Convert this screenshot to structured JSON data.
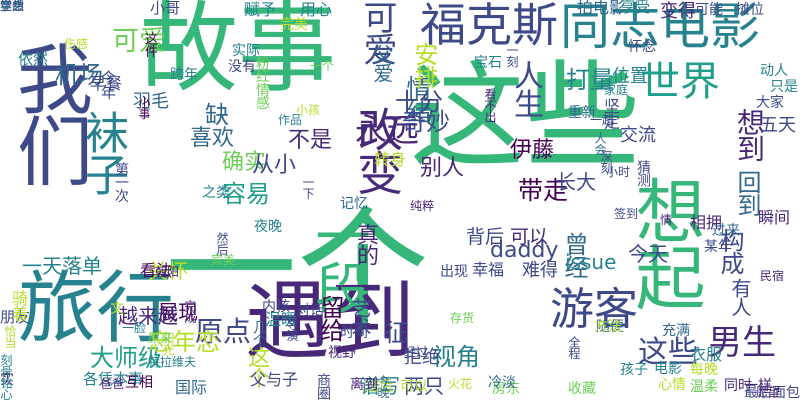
{
  "colors": {
    "background": "#ffffff",
    "palette": [
      "#440154",
      "#482878",
      "#3e4989",
      "#31688e",
      "#26828e",
      "#1f9e89",
      "#35b779",
      "#6ece58",
      "#b5de2b",
      "#fde725"
    ]
  },
  "words": [
    {
      "text": "一个",
      "color": "#35b779"
    },
    {
      "text": "这些",
      "color": "#35b779"
    },
    {
      "text": "故事",
      "color": "#35b779"
    },
    {
      "text": "想起",
      "color": "#35b779"
    },
    {
      "text": "我们",
      "color": "#3e4989"
    },
    {
      "text": "旅行",
      "color": "#26828e"
    },
    {
      "text": "遇到",
      "color": "#482878"
    },
    {
      "text": "同志电影",
      "color": "#26828e"
    },
    {
      "text": "福克斯",
      "color": "#3e4989"
    },
    {
      "text": "一段",
      "color": "#35b779"
    },
    {
      "text": "袜子",
      "color": "#26828e"
    },
    {
      "text": "改变",
      "color": "#482878"
    },
    {
      "text": "游客",
      "color": "#3e4989"
    },
    {
      "text": "世界",
      "color": "#1f9e89"
    },
    {
      "text": "永远",
      "color": "#482878"
    },
    {
      "text": "男生",
      "color": "#482878"
    },
    {
      "text": "可爱",
      "color": "#3e4989"
    },
    {
      "text": "人生",
      "color": "#3e4989"
    },
    {
      "text": "想到",
      "color": "#482878"
    },
    {
      "text": "机场",
      "color": "#31688e"
    },
    {
      "text": "情绪",
      "color": "#31688e"
    },
    {
      "text": "容易",
      "color": "#1f9e89"
    },
    {
      "text": "确实",
      "color": "#6ece58"
    },
    {
      "text": "真的",
      "color": "#482878"
    },
    {
      "text": "别人",
      "color": "#482878"
    },
    {
      "text": "带走",
      "color": "#440154"
    },
    {
      "text": "回到",
      "color": "#31688e"
    },
    {
      "text": "原点",
      "color": "#3e4989"
    },
    {
      "text": "这个",
      "color": "#b5de2b"
    },
    {
      "text": "留给",
      "color": "#440154"
    },
    {
      "text": "曾经",
      "color": "#31688e"
    },
    {
      "text": "这些",
      "color": "#3e4989"
    },
    {
      "text": "有人",
      "color": "#3e4989"
    },
    {
      "text": "构成",
      "color": "#3e4989"
    },
    {
      "text": "不是",
      "color": "#482878"
    },
    {
      "text": "缺",
      "color": "#31688e"
    },
    {
      "text": "从小",
      "color": "#3e4989"
    },
    {
      "text": "喜欢",
      "color": "#31688e"
    },
    {
      "text": "daddy",
      "color": "#3e4989"
    },
    {
      "text": "issue",
      "color": "#26828e"
    },
    {
      "text": "今天",
      "color": "#3e4989"
    },
    {
      "text": "展现",
      "color": "#440154"
    },
    {
      "text": "大师级",
      "color": "#1f9e89"
    },
    {
      "text": "一天落单",
      "color": "#26828e"
    },
    {
      "text": "越来越",
      "color": "#482878"
    },
    {
      "text": "关怀",
      "color": "#b5de2b"
    },
    {
      "text": "视角",
      "color": "#26828e"
    },
    {
      "text": "谱写",
      "color": "#26828e"
    },
    {
      "text": "两只",
      "color": "#3e4989"
    },
    {
      "text": "伊藤",
      "color": "#440154"
    },
    {
      "text": "长大",
      "color": "#3e4989"
    },
    {
      "text": "背后",
      "color": "#3e4989"
    },
    {
      "text": "可以",
      "color": "#482878"
    },
    {
      "text": "幸福",
      "color": "#3e4989"
    },
    {
      "text": "难得",
      "color": "#3e4989"
    },
    {
      "text": "交流",
      "color": "#3e4989"
    },
    {
      "text": "五天",
      "color": "#3e4989"
    },
    {
      "text": "打量",
      "color": "#26828e"
    },
    {
      "text": "位置",
      "color": "#26828e"
    },
    {
      "text": "拒绝",
      "color": "#3e4989"
    },
    {
      "text": "早餐",
      "color": "#3e4989"
    },
    {
      "text": "今年",
      "color": "#3e4989"
    },
    {
      "text": "羽毛",
      "color": "#31688e"
    },
    {
      "text": "可爱",
      "color": "#6ece58"
    },
    {
      "text": "父爱",
      "color": "#31688e"
    },
    {
      "text": "坚定",
      "color": "#3e4989"
    },
    {
      "text": "转身",
      "color": "#b5de2b"
    },
    {
      "text": "拍电影",
      "color": "#31688e"
    },
    {
      "text": "享受",
      "color": "#26828e"
    },
    {
      "text": "变得",
      "color": "#482878"
    },
    {
      "text": "可能",
      "color": "#3e4989"
    },
    {
      "text": "摊位",
      "color": "#3e4989"
    },
    {
      "text": "赋予",
      "color": "#26828e"
    },
    {
      "text": "用心",
      "color": "#26828e"
    },
    {
      "text": "依然",
      "color": "#26828e"
    },
    {
      "text": "小哥",
      "color": "#3e4989"
    },
    {
      "text": "忘年恋",
      "color": "#b5de2b"
    },
    {
      "text": "父与子",
      "color": "#3e4989"
    },
    {
      "text": "国际",
      "color": "#31688e"
    },
    {
      "text": "衣服",
      "color": "#26828e"
    },
    {
      "text": "看法",
      "color": "#440154"
    },
    {
      "text": "各凭本事",
      "color": "#26828e"
    },
    {
      "text": "温暖",
      "color": "#26828e"
    },
    {
      "text": "瞬间",
      "color": "#482878"
    },
    {
      "text": "相拥",
      "color": "#482878"
    },
    {
      "text": "过来",
      "color": "#31688e"
    },
    {
      "text": "朋友",
      "color": "#3e4989"
    },
    {
      "text": "骑着",
      "color": "#b5de2b"
    },
    {
      "text": "互相",
      "color": "#440154"
    },
    {
      "text": "过后",
      "color": "#b5de2b"
    },
    {
      "text": "最后面包",
      "color": "#3e4989"
    },
    {
      "text": "房东",
      "color": "#6ece58"
    },
    {
      "text": "第一次",
      "color": "#3e4989"
    },
    {
      "text": "之类",
      "color": "#26828e"
    },
    {
      "text": "今晚",
      "color": "#31688e"
    },
    {
      "text": "恰当",
      "color": "#b5de2b"
    },
    {
      "text": "宾美",
      "color": "#6ece58"
    },
    {
      "text": "内核",
      "color": "#3e4989"
    },
    {
      "text": "对话",
      "color": "#3e4989"
    },
    {
      "text": "视野",
      "color": "#482878"
    },
    {
      "text": "某年",
      "color": "#3e4989"
    },
    {
      "text": "孩子",
      "color": "#26828e"
    },
    {
      "text": "电影",
      "color": "#26828e"
    },
    {
      "text": "出现",
      "color": "#3e4989"
    },
    {
      "text": "收藏",
      "color": "#6ece58"
    },
    {
      "text": "每晚",
      "color": "#b5de2b"
    },
    {
      "text": "充满",
      "color": "#31688e"
    },
    {
      "text": "动人",
      "color": "#26828e"
    },
    {
      "text": "猜测",
      "color": "#3e4989"
    },
    {
      "text": "随便",
      "color": "#31688e"
    },
    {
      "text": "这件",
      "color": "#440154"
    },
    {
      "text": "一刻",
      "color": "#3e4989"
    },
    {
      "text": "重新",
      "color": "#31688e"
    },
    {
      "text": "大家",
      "color": "#3e4989"
    },
    {
      "text": "只是",
      "color": "#26828e"
    },
    {
      "text": "方法",
      "color": "#b5de2b"
    },
    {
      "text": "宝石",
      "color": "#26828e"
    },
    {
      "text": "全程",
      "color": "#3e4989"
    },
    {
      "text": "怀念",
      "color": "#3e4989"
    },
    {
      "text": "实际",
      "color": "#26828e"
    },
    {
      "text": "心情",
      "color": "#b5de2b"
    },
    {
      "text": "温柔",
      "color": "#6ece58"
    },
    {
      "text": "同时",
      "color": "#482878"
    },
    {
      "text": "一样",
      "color": "#482878"
    },
    {
      "text": "爸爸",
      "color": "#482878"
    },
    {
      "text": "朝阳",
      "color": "#482878"
    },
    {
      "text": "小事",
      "color": "#440154"
    },
    {
      "text": "阳光",
      "color": "#b5de2b"
    },
    {
      "text": "没有",
      "color": "#3e4989"
    },
    {
      "text": "跨年",
      "color": "#26828e"
    },
    {
      "text": "粉红情感",
      "color": "#6ece58"
    },
    {
      "text": "可以",
      "color": "#b5de2b"
    },
    {
      "text": "伤感",
      "color": "#b5de2b"
    },
    {
      "text": "纯粹",
      "color": "#482878"
    },
    {
      "text": "看不出",
      "color": "#482878"
    },
    {
      "text": "经过",
      "color": "#3e4989"
    },
    {
      "text": "火花",
      "color": "#b5de2b"
    },
    {
      "text": "深刻",
      "color": "#3e4989"
    },
    {
      "text": "记忆",
      "color": "#31688e"
    },
    {
      "text": "时间",
      "color": "#3e4989"
    },
    {
      "text": "民宿",
      "color": "#482878"
    },
    {
      "text": "完美",
      "color": "#b5de2b"
    },
    {
      "text": "一个",
      "color": "#6ece58"
    },
    {
      "text": "一起",
      "color": "#3e4989"
    },
    {
      "text": "小孩",
      "color": "#b5de2b"
    },
    {
      "text": "签到",
      "color": "#3e4989"
    },
    {
      "text": "家庭",
      "color": "#26828e"
    },
    {
      "text": "十分",
      "color": "#3e4989"
    },
    {
      "text": "奇妙",
      "color": "#3e4989"
    },
    {
      "text": "征",
      "color": "#3e4989"
    },
    {
      "text": "实",
      "color": "#482878"
    },
    {
      "text": "情",
      "color": "#482878"
    },
    {
      "text": "存货",
      "color": "#6ece58"
    },
    {
      "text": "愿望",
      "color": "#482878"
    },
    {
      "text": "作品",
      "color": "#26828e"
    },
    {
      "text": "刻骨铭心",
      "color": "#26828e"
    },
    {
      "text": "导演",
      "color": "#3e4989"
    },
    {
      "text": "几个",
      "color": "#31688e"
    },
    {
      "text": "完成",
      "color": "#482878"
    },
    {
      "text": "一下",
      "color": "#3e4989"
    },
    {
      "text": "艺术",
      "color": "#3e4989"
    },
    {
      "text": "安排",
      "color": "#b5de2b"
    },
    {
      "text": "夜晚",
      "color": "#26828e"
    },
    {
      "text": "文",
      "color": "#b5de2b"
    },
    {
      "text": "特拉维夫",
      "color": "#26828e"
    },
    {
      "text": "一脸",
      "color": "#26828e"
    },
    {
      "text": "原来",
      "color": "#6ece58"
    },
    {
      "text": "然后",
      "color": "#3e4989"
    },
    {
      "text": "人会",
      "color": "#31688e"
    },
    {
      "text": "小时",
      "color": "#3e4989"
    },
    {
      "text": "冷淡",
      "color": "#31688e"
    },
    {
      "text": "离到",
      "color": "#482878"
    },
    {
      "text": "商圈",
      "color": "#3e4989"
    },
    {
      "text": "学会",
      "color": "#26828e"
    },
    {
      "text": "竟然",
      "color": "#31688e"
    },
    {
      "text": "空想",
      "color": "#3e4989"
    }
  ]
}
